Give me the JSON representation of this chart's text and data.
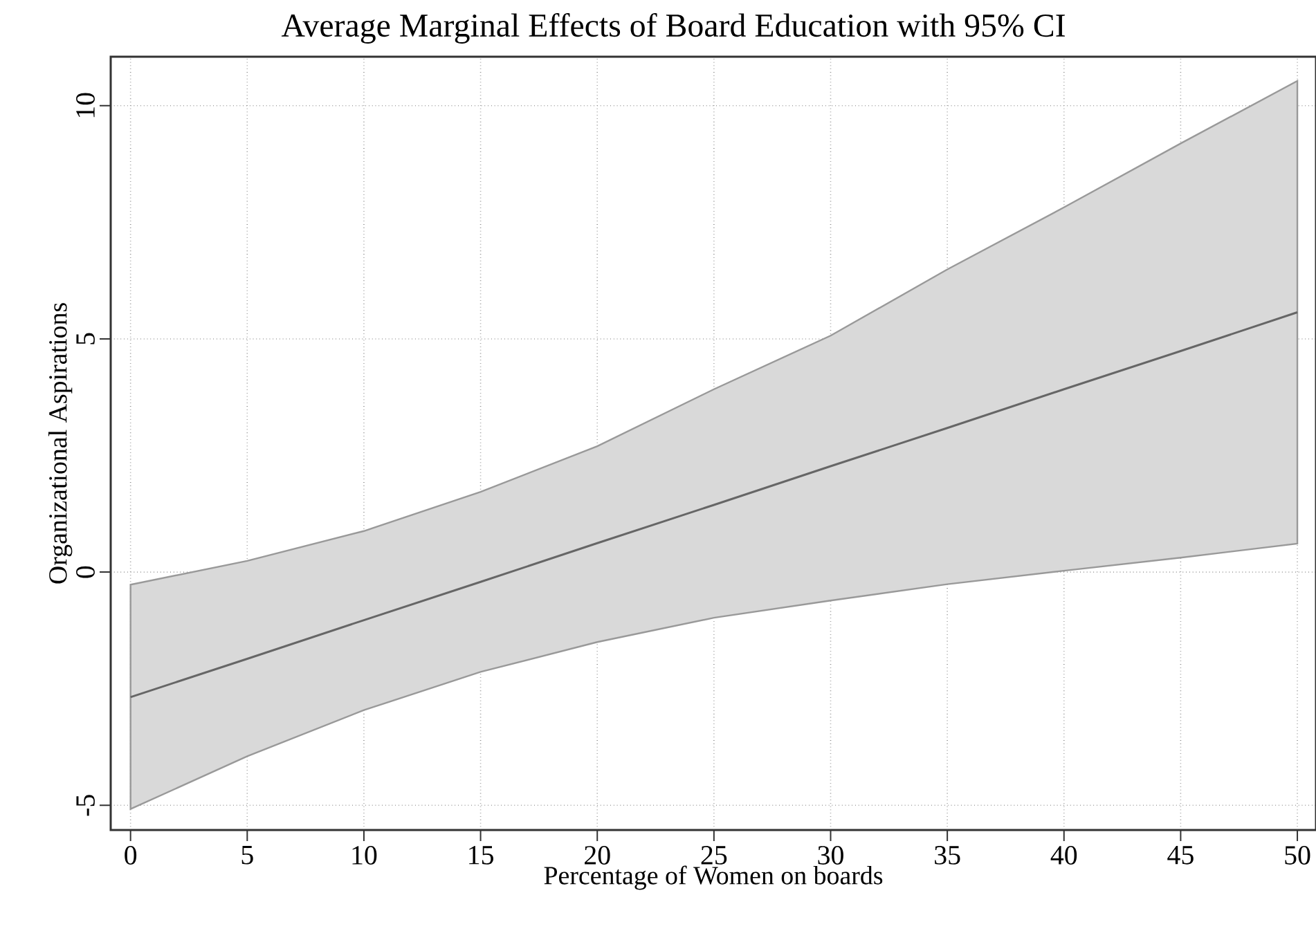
{
  "chart_data": {
    "type": "line",
    "title": "Average Marginal Effects of Board Education with 95% CI",
    "xlabel": "Percentage of Women on boards",
    "ylabel": "Organizational Aspirations",
    "x": [
      0,
      5,
      10,
      15,
      20,
      25,
      30,
      35,
      40,
      45,
      50
    ],
    "series": [
      {
        "color": "#666666",
        "values": [
          -2.68,
          -1.86,
          -1.03,
          -0.21,
          0.62,
          1.44,
          2.27,
          3.09,
          3.92,
          4.74,
          5.57
        ],
        "lower": [
          -5.08,
          -3.95,
          -2.96,
          -2.14,
          -1.5,
          -0.98,
          -0.61,
          -0.26,
          0.03,
          0.31,
          0.61
        ],
        "upper": [
          -0.27,
          0.24,
          0.88,
          1.72,
          2.7,
          3.92,
          5.07,
          6.49,
          7.82,
          9.19,
          10.53
        ]
      }
    ],
    "xlim": [
      -0.85,
      50.8
    ],
    "ylim": [
      -5.53,
      11.05
    ],
    "xticks": [
      0,
      5,
      10,
      15,
      20,
      25,
      30,
      35,
      40,
      45,
      50
    ],
    "yticks": [
      -5,
      0,
      5,
      10
    ],
    "grid": true,
    "marker": "none",
    "line_style": "solid"
  }
}
